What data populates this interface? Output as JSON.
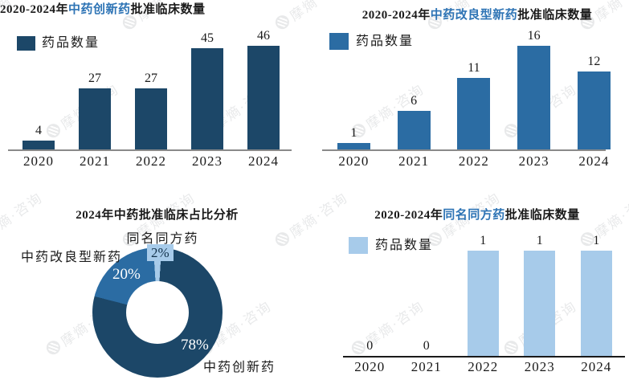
{
  "colors": {
    "dark_navy": "#1C4768",
    "medium_blue": "#2B6CA3",
    "light_blue": "#A7CBEA",
    "highlight_blue": "#2E74B5",
    "axis_gray": "#8A8A8A",
    "axis_dark": "#1A1A1A",
    "text_black": "#1A1A1A"
  },
  "watermark": {
    "text": "摩熵·咨询",
    "icon": "circle-badge-logo"
  },
  "chart_data": [
    {
      "id": "tcm-innovative-drug",
      "type": "bar",
      "title_prefix": "2020-2024年",
      "title_highlight": "中药创新药",
      "title_suffix": "批准临床数量",
      "legend": "药品数量",
      "legend_position": "top-left",
      "categories": [
        "2020",
        "2021",
        "2022",
        "2023",
        "2024"
      ],
      "values": [
        4,
        27,
        27,
        45,
        46
      ],
      "bar_color_key": "dark_navy",
      "grid": false
    },
    {
      "id": "tcm-improved-new-drug",
      "type": "bar",
      "title_prefix": "2020-2024年",
      "title_highlight": "中药改良型新药",
      "title_suffix": "批准临床数量",
      "legend": "药品数量",
      "legend_position": "top-left",
      "categories": [
        "2020",
        "2021",
        "2022",
        "2023",
        "2024"
      ],
      "values": [
        1,
        6,
        11,
        16,
        12
      ],
      "bar_color_key": "medium_blue",
      "grid": false
    },
    {
      "id": "tcm-2024-share",
      "type": "pie",
      "donut": true,
      "title_prefix": "2024年中药批准临床占比分析",
      "title_highlight": "",
      "title_suffix": "",
      "segments": [
        {
          "label": "中药创新药",
          "value": 78,
          "pct_label": "78%",
          "color_key": "dark_navy"
        },
        {
          "label": "中药改良型新药",
          "value": 20,
          "pct_label": "20%",
          "color_key": "medium_blue"
        },
        {
          "label": "同名同方药",
          "value": 2,
          "pct_label": "2%",
          "color_key": "light_blue"
        }
      ]
    },
    {
      "id": "same-name-same-formula",
      "type": "bar",
      "title_prefix": "2020-2024年",
      "title_highlight": "同名同方药",
      "title_suffix": "批准临床数量",
      "legend": "药品数量",
      "legend_position": "top-left",
      "categories": [
        "2020",
        "2021",
        "2022",
        "2023",
        "2024"
      ],
      "values": [
        0,
        0,
        1,
        1,
        1
      ],
      "bar_color_key": "light_blue",
      "grid": false
    }
  ]
}
